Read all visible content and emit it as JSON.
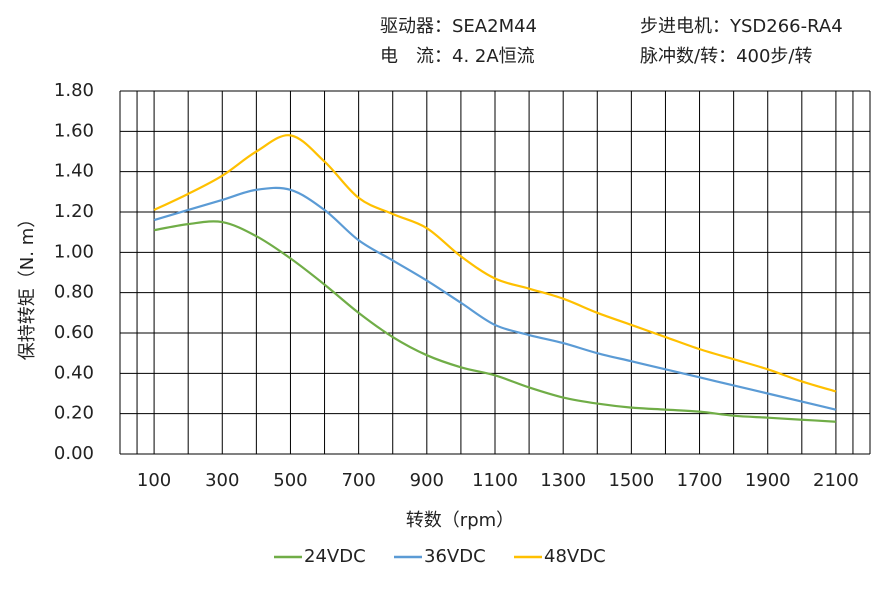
{
  "header": {
    "driver": "驱动器：SEA2M44",
    "motor": "步进电机：YSD266-RA4",
    "current": "电　流：4. 2A恒流",
    "pulses": "脉冲数/转：400步/转"
  },
  "chart_data": {
    "type": "line",
    "x_label": "转数（rpm）",
    "y_label": "保持转矩（N. m）",
    "x": [
      100,
      200,
      300,
      400,
      500,
      600,
      700,
      800,
      900,
      1000,
      1100,
      1200,
      1300,
      1400,
      1500,
      1600,
      1700,
      1800,
      1900,
      2000,
      2100
    ],
    "series": [
      {
        "name": "24VDC",
        "color": "#70ad47",
        "values": [
          1.11,
          1.14,
          1.15,
          1.08,
          0.97,
          0.84,
          0.7,
          0.58,
          0.49,
          0.43,
          0.39,
          0.33,
          0.28,
          0.25,
          0.23,
          0.22,
          0.21,
          0.19,
          0.18,
          0.17,
          0.16
        ]
      },
      {
        "name": "36VDC",
        "color": "#5b9bd5",
        "values": [
          1.16,
          1.21,
          1.26,
          1.31,
          1.31,
          1.21,
          1.06,
          0.96,
          0.86,
          0.75,
          0.64,
          0.59,
          0.55,
          0.5,
          0.46,
          0.42,
          0.38,
          0.34,
          0.3,
          0.26,
          0.22
        ]
      },
      {
        "name": "48VDC",
        "color": "#ffc000",
        "values": [
          1.21,
          1.29,
          1.38,
          1.5,
          1.58,
          1.45,
          1.27,
          1.19,
          1.12,
          0.98,
          0.87,
          0.82,
          0.77,
          0.7,
          0.64,
          0.58,
          0.52,
          0.47,
          0.42,
          0.36,
          0.31
        ]
      }
    ],
    "xlim": [
      0,
      2200
    ],
    "xticks": [
      100,
      300,
      500,
      700,
      900,
      1100,
      1300,
      1500,
      1700,
      1900,
      2100
    ],
    "ylim": [
      0,
      1.8
    ],
    "yticks": [
      {
        "value": 0,
        "label": "0.00"
      },
      {
        "value": 0.2,
        "label": "0.20"
      },
      {
        "value": 0.4,
        "label": "0.40"
      },
      {
        "value": 0.6,
        "label": "0.60"
      },
      {
        "value": 0.8,
        "label": "0.80"
      },
      {
        "value": 1.0,
        "label": "1.00"
      },
      {
        "value": 1.2,
        "label": "1.20"
      },
      {
        "value": 1.4,
        "label": "1.40"
      },
      {
        "value": 1.6,
        "label": "1.60"
      },
      {
        "value": 1.8,
        "label": "1.80"
      }
    ],
    "grid": true,
    "legend": "bottom"
  }
}
